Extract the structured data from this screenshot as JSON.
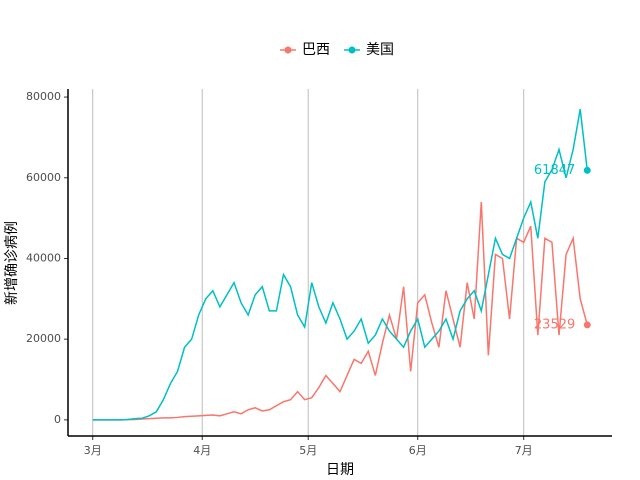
{
  "chart_data": {
    "type": "line",
    "xlabel": "日期",
    "ylabel": "新增确诊病例",
    "x": [
      0,
      2,
      4,
      6,
      8,
      10,
      12,
      14,
      16,
      18,
      20,
      22,
      24,
      26,
      28,
      30,
      32,
      34,
      36,
      38,
      40,
      42,
      44,
      46,
      48,
      50,
      52,
      54,
      56,
      58,
      60,
      62,
      64,
      66,
      68,
      70,
      72,
      74,
      76,
      78,
      80,
      82,
      84,
      86,
      88,
      90,
      92,
      94,
      96,
      98,
      100,
      102,
      104,
      106,
      108,
      110,
      112,
      114,
      116,
      118,
      120,
      122,
      124,
      126,
      128,
      130,
      132,
      134,
      136,
      138,
      140
    ],
    "series": [
      {
        "name": "巴西",
        "color": "#F8766D",
        "values": [
          0,
          0,
          0,
          0,
          0,
          50,
          100,
          200,
          300,
          400,
          500,
          500,
          600,
          800,
          900,
          1000,
          1100,
          1200,
          1000,
          1500,
          2000,
          1500,
          2500,
          3000,
          2200,
          2500,
          3500,
          4500,
          5000,
          7000,
          5000,
          5500,
          8000,
          11000,
          9000,
          7000,
          11000,
          15000,
          14000,
          17000,
          11000,
          19000,
          26000,
          20000,
          33000,
          12000,
          29000,
          31000,
          24000,
          18000,
          32000,
          25000,
          18000,
          34000,
          25000,
          54000,
          16000,
          41000,
          40000,
          25000,
          45000,
          44000,
          48000,
          21000,
          45000,
          44000,
          21000,
          41000,
          45000,
          30000,
          23529
        ]
      },
      {
        "name": "美国",
        "color": "#00BFC4",
        "values": [
          0,
          0,
          0,
          0,
          0,
          100,
          300,
          400,
          1000,
          2000,
          5000,
          9000,
          12000,
          18000,
          20000,
          26000,
          30000,
          32000,
          28000,
          31000,
          34000,
          29000,
          26000,
          31000,
          33000,
          27000,
          27000,
          36000,
          33000,
          26000,
          23000,
          34000,
          28000,
          24000,
          29000,
          25000,
          20000,
          22000,
          25000,
          19000,
          21000,
          25000,
          22000,
          20000,
          18000,
          22000,
          25000,
          18000,
          20000,
          22000,
          25000,
          20000,
          27000,
          30000,
          32000,
          27000,
          36000,
          45000,
          41000,
          40000,
          45000,
          50000,
          54000,
          45000,
          59000,
          62000,
          67000,
          60000,
          67000,
          77000,
          61847
        ]
      }
    ],
    "xlim": [
      -7,
      147
    ],
    "xticks": [
      {
        "value": 0,
        "label": "3月"
      },
      {
        "value": 31,
        "label": "4月"
      },
      {
        "value": 61,
        "label": "5月"
      },
      {
        "value": 92,
        "label": "6月"
      },
      {
        "value": 122,
        "label": "7月"
      }
    ],
    "ylim": [
      -4000,
      82000
    ],
    "yticks": [
      0,
      20000,
      40000,
      60000,
      80000
    ],
    "grid": "x",
    "legend": "top"
  }
}
